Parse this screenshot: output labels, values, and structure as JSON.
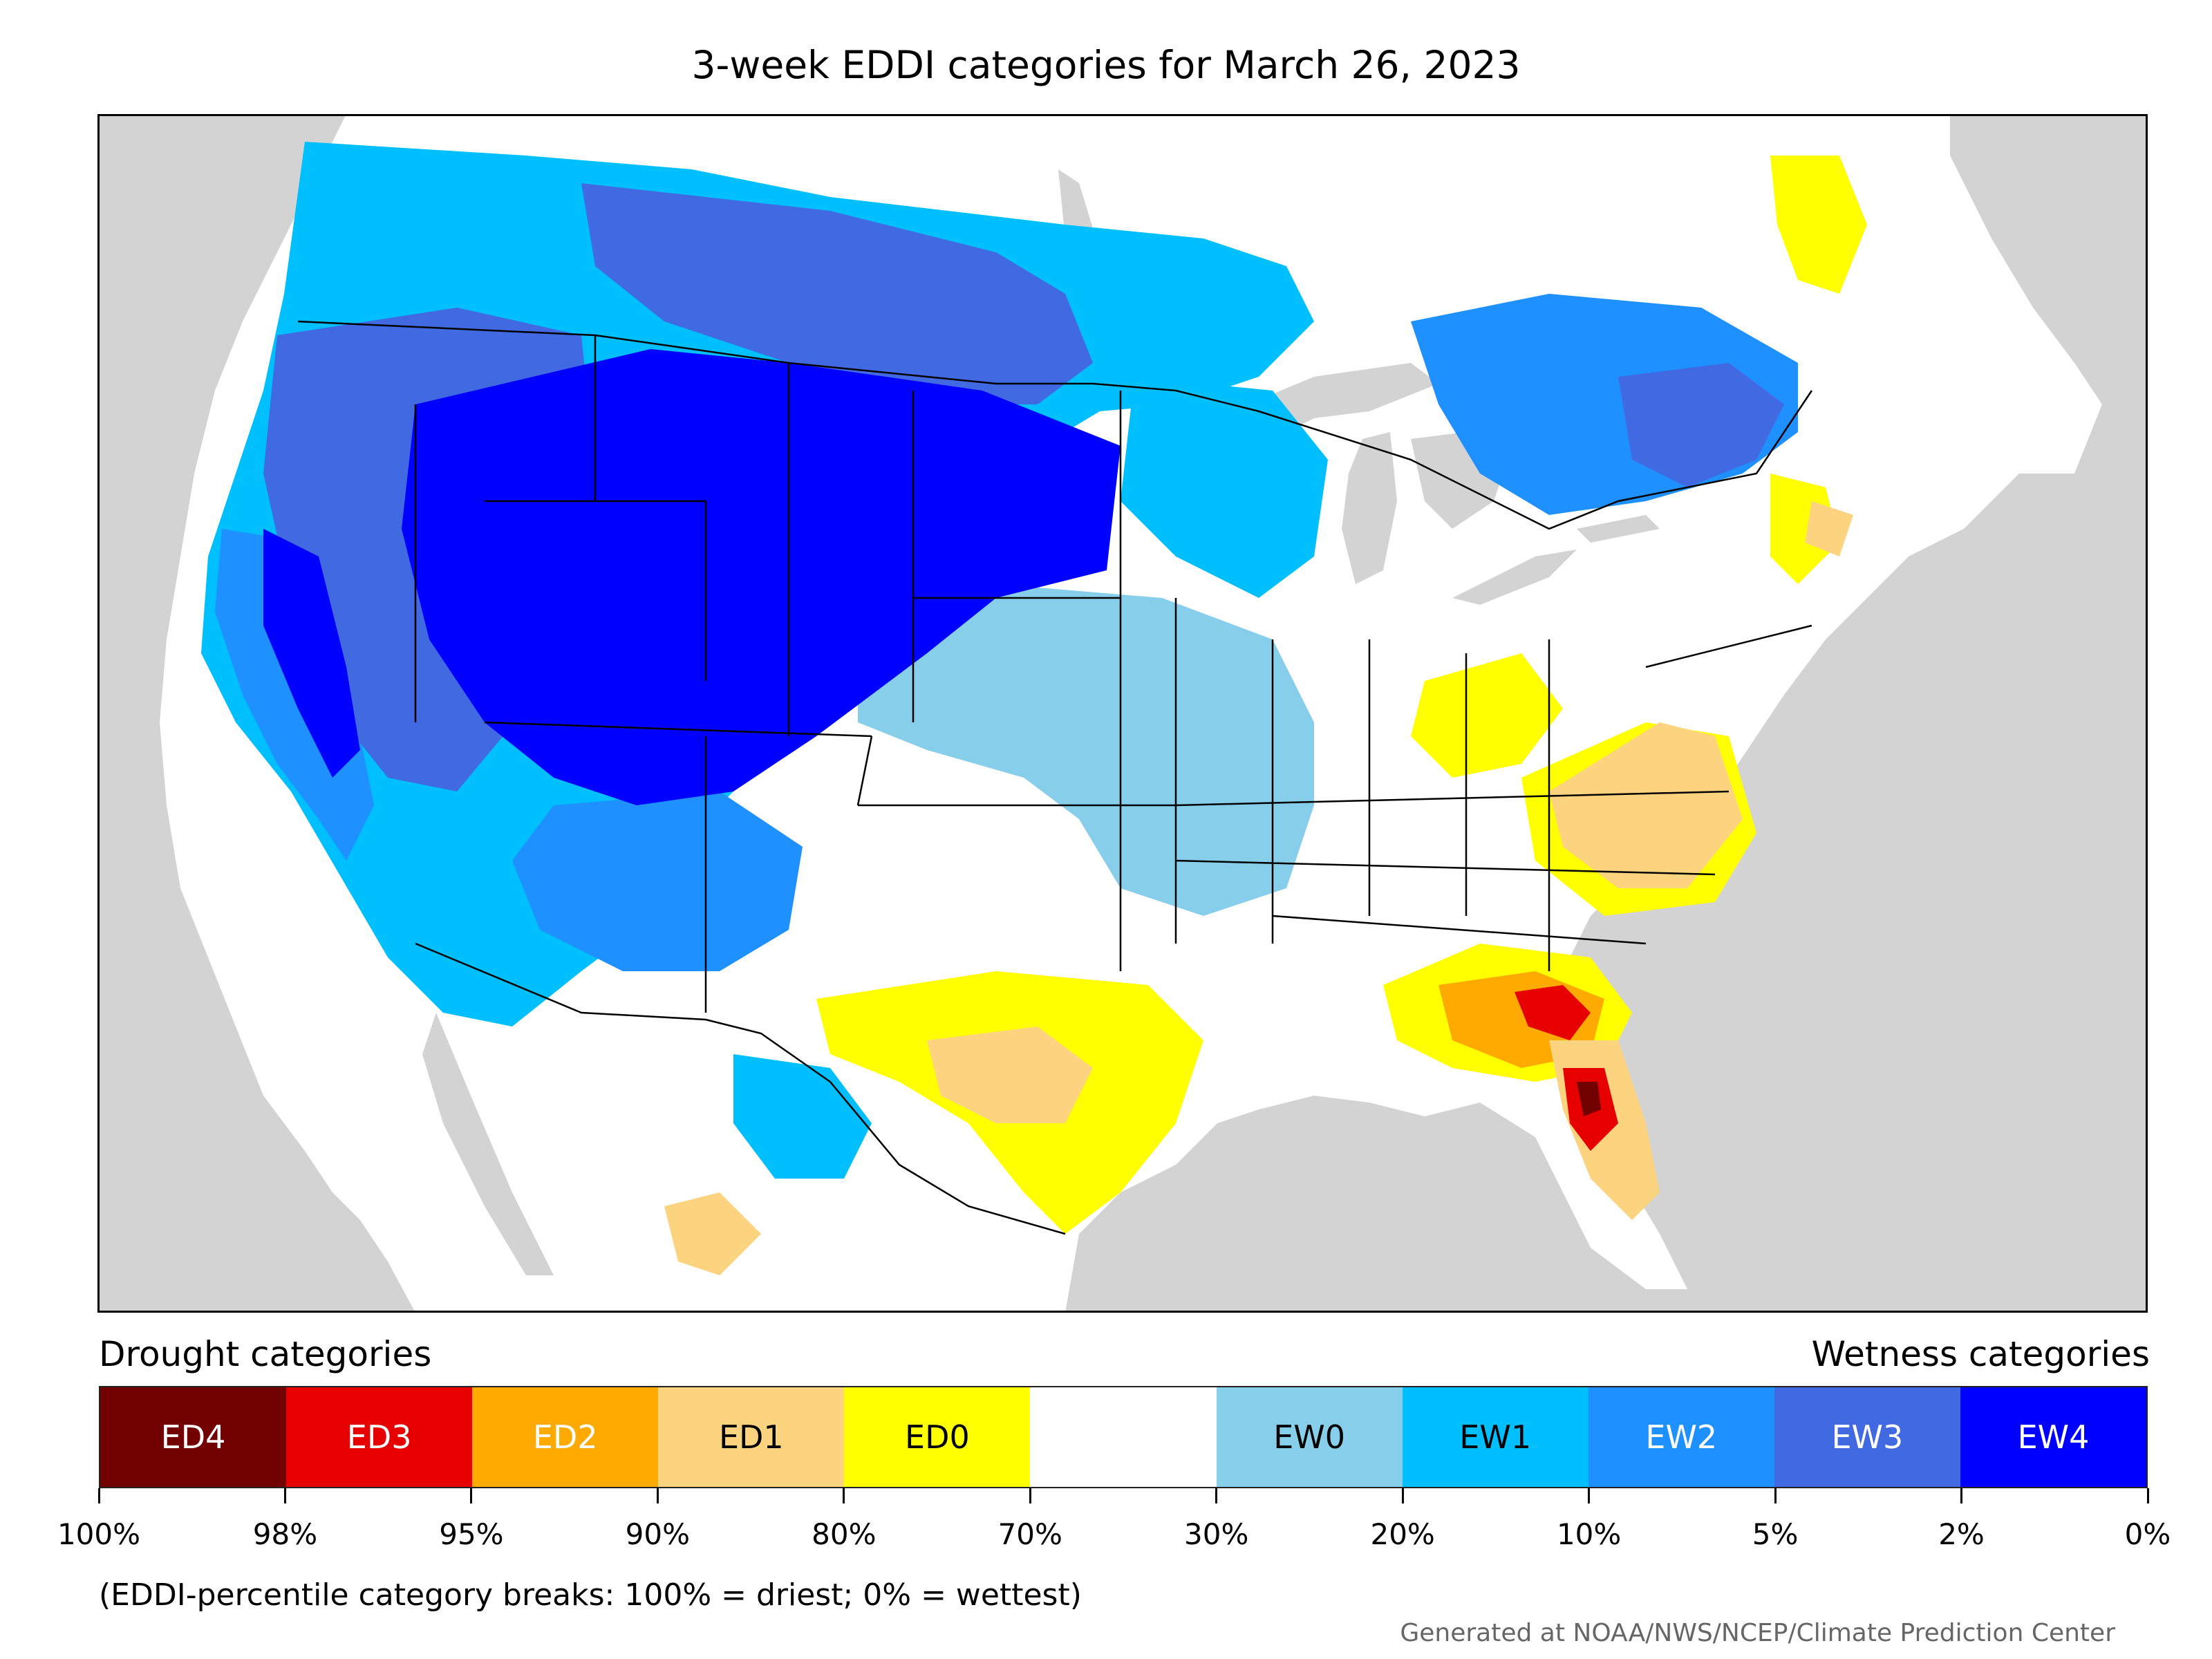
{
  "title": "3-week EDDI categories for March 26, 2023",
  "legend": {
    "drought_label": "Drought categories",
    "wetness_label": "Wetness categories",
    "categories": [
      {
        "label": "ED4",
        "color": "#730000",
        "text_color": "#ffffff"
      },
      {
        "label": "ED3",
        "color": "#e60000",
        "text_color": "#ffffff"
      },
      {
        "label": "ED2",
        "color": "#ffaa00",
        "text_color": "#ffffff"
      },
      {
        "label": "ED1",
        "color": "#fcd37f",
        "text_color": "#000000"
      },
      {
        "label": "ED0",
        "color": "#ffff00",
        "text_color": "#000000"
      },
      {
        "label": "",
        "color": "#ffffff",
        "text_color": "#000000"
      },
      {
        "label": "EW0",
        "color": "#87ceeb",
        "text_color": "#000000"
      },
      {
        "label": "EW1",
        "color": "#00bfff",
        "text_color": "#000000"
      },
      {
        "label": "EW2",
        "color": "#1e90ff",
        "text_color": "#ffffff"
      },
      {
        "label": "EW3",
        "color": "#4169e1",
        "text_color": "#ffffff"
      },
      {
        "label": "EW4",
        "color": "#0000ff",
        "text_color": "#ffffff"
      }
    ],
    "breaks": [
      "100%",
      "98%",
      "95%",
      "90%",
      "80%",
      "70%",
      "30%",
      "20%",
      "10%",
      "5%",
      "2%",
      "0%"
    ]
  },
  "note": "(EDDI-percentile category breaks: 100% = driest; 0% = wettest)",
  "credit": "Generated at NOAA/NWS/NCEP/Climate Prediction Center",
  "colors": {
    "ocean": "#d3d3d3",
    "land": "#ffffff",
    "border": "#000000"
  },
  "map_regions": [
    {
      "name": "wet-pacific-northwest-ew4",
      "category": "EW4"
    },
    {
      "name": "wet-idaho-montana-wyoming-ew4",
      "category": "EW4"
    },
    {
      "name": "wet-utah-colorado-ew4",
      "category": "EW4"
    },
    {
      "name": "wet-dakotas-ew4",
      "category": "EW4"
    },
    {
      "name": "wet-great-basin-ew3",
      "category": "EW3"
    },
    {
      "name": "wet-california-ew2",
      "category": "EW2"
    },
    {
      "name": "wet-arizona-new-mexico-ew2",
      "category": "EW2"
    },
    {
      "name": "wet-canadian-prairies-ew3",
      "category": "EW3"
    },
    {
      "name": "wet-upper-midwest-ew1",
      "category": "EW1"
    },
    {
      "name": "wet-plains-ew0",
      "category": "EW0"
    },
    {
      "name": "wet-quebec-new-england-ew2",
      "category": "EW2"
    },
    {
      "name": "dry-texas-ed0",
      "category": "ED0"
    },
    {
      "name": "dry-texas-ed1",
      "category": "ED1"
    },
    {
      "name": "dry-virginia-carolinas-ed1",
      "category": "ED1"
    },
    {
      "name": "dry-ohio-valley-ed0",
      "category": "ED0"
    },
    {
      "name": "dry-georgia-florida-ed2",
      "category": "ED2"
    },
    {
      "name": "dry-florida-ed3",
      "category": "ED3"
    },
    {
      "name": "dry-florida-ed4",
      "category": "ED4"
    },
    {
      "name": "dry-new-england-coast-ed0",
      "category": "ED0"
    },
    {
      "name": "dry-mexico-sonora-ed1",
      "category": "ED1"
    }
  ]
}
